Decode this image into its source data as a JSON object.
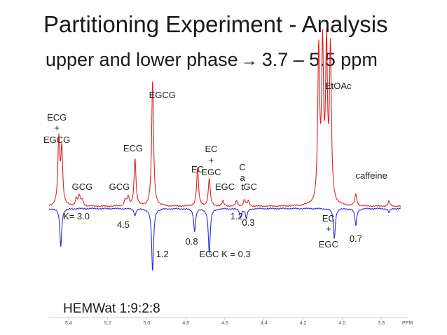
{
  "slide": {
    "title": "Partitioning Experiment - Analysis",
    "subtitle_prefix": "upper and lower phase",
    "subtitle_arrow": "→",
    "subtitle_range": "3.7 – 5.5 ppm",
    "footer": "HEMWat 1:9:2:8"
  },
  "chart_data": {
    "type": "line",
    "title": "",
    "xlabel": "PPM",
    "ylabel": "",
    "x_reversed": true,
    "xlim": [
      5.5,
      3.7
    ],
    "x_ticks": [
      "5.4",
      "5.2",
      "5.0",
      "4.8",
      "4.6",
      "4.4",
      "4.2",
      "4.0",
      "3.8"
    ],
    "x_tick_values": [
      5.4,
      5.2,
      5.0,
      4.8,
      4.6,
      4.4,
      4.2,
      4.0,
      3.8
    ],
    "grid": false,
    "legend": "none",
    "series": [
      {
        "name": "",
        "color": "#e02020",
        "direction": "up",
        "peaks": [
          {
            "ppm": 5.45,
            "height": 0.52
          },
          {
            "ppm": 5.435,
            "height": 0.44
          },
          {
            "ppm": 5.36,
            "height": 0.06
          },
          {
            "ppm": 5.345,
            "height": 0.08
          },
          {
            "ppm": 5.33,
            "height": 0.05
          },
          {
            "ppm": 5.11,
            "height": 0.05
          },
          {
            "ppm": 5.095,
            "height": 0.07
          },
          {
            "ppm": 5.06,
            "height": 0.38
          },
          {
            "ppm": 4.97,
            "height": 1.0
          },
          {
            "ppm": 4.74,
            "height": 0.3
          },
          {
            "ppm": 4.68,
            "height": 0.22
          },
          {
            "ppm": 4.61,
            "height": 0.04
          },
          {
            "ppm": 4.54,
            "height": 0.04
          },
          {
            "ppm": 4.5,
            "height": 0.05
          },
          {
            "ppm": 4.48,
            "height": 0.04
          },
          {
            "ppm": 4.12,
            "height": 1.2
          },
          {
            "ppm": 4.1,
            "height": 1.2
          },
          {
            "ppm": 4.08,
            "height": 1.2
          },
          {
            "ppm": 4.06,
            "height": 1.2
          },
          {
            "ppm": 3.93,
            "height": 0.09
          },
          {
            "ppm": 3.76,
            "height": 0.04
          }
        ]
      },
      {
        "name": "",
        "color": "#2a2ae0",
        "direction": "down",
        "peaks": [
          {
            "ppm": 5.44,
            "height": 0.45
          },
          {
            "ppm": 5.06,
            "height": 0.08
          },
          {
            "ppm": 4.97,
            "height": 0.75
          },
          {
            "ppm": 4.755,
            "height": 0.27
          },
          {
            "ppm": 4.68,
            "height": 0.54
          },
          {
            "ppm": 4.52,
            "height": 0.1
          },
          {
            "ppm": 4.49,
            "height": 0.12
          },
          {
            "ppm": 4.04,
            "height": 0.36
          },
          {
            "ppm": 3.93,
            "height": 0.2
          },
          {
            "ppm": 3.76,
            "height": 0.05
          }
        ]
      }
    ],
    "annotations": [
      {
        "text": "ECG",
        "ppm": 5.46,
        "row": 0
      },
      {
        "text": "+",
        "ppm": 5.46,
        "row": 1
      },
      {
        "text": "EGCG",
        "ppm": 5.46,
        "row": 2
      },
      {
        "text": "GCG",
        "ppm": 5.33,
        "row": 3
      },
      {
        "text": "GCG",
        "ppm": 5.14,
        "row": 3
      },
      {
        "text": "ECG",
        "ppm": 5.07,
        "row": 4
      },
      {
        "text": "EGCG",
        "ppm": 4.92,
        "row": 5
      },
      {
        "text": "EC",
        "ppm": 4.74,
        "row": 6
      },
      {
        "text": "EC",
        "ppm": 4.67,
        "row": 7
      },
      {
        "text": "+",
        "ppm": 4.67,
        "row": 8
      },
      {
        "text": "EGC",
        "ppm": 4.67,
        "row": 9
      },
      {
        "text": "EGC",
        "ppm": 4.6,
        "row": 3
      },
      {
        "text": "C",
        "ppm": 4.51,
        "row": 10
      },
      {
        "text": "a",
        "ppm": 4.51,
        "row": 11
      },
      {
        "text": "t",
        "ppm": 4.51,
        "row": 3
      },
      {
        "text": "GC",
        "ppm": 4.47,
        "row": 3
      },
      {
        "text": "EtOAc",
        "ppm": 4.02,
        "row": 12
      },
      {
        "text": "caffeine",
        "ppm": 3.85,
        "row": 13
      },
      {
        "text": "K= 3.0",
        "ppm": 5.36,
        "row": 14
      },
      {
        "text": "4.5",
        "ppm": 5.12,
        "row": 15
      },
      {
        "text": "1.2",
        "ppm": 4.92,
        "row": 16
      },
      {
        "text": "0.8",
        "ppm": 4.77,
        "row": 17
      },
      {
        "text": "1.2",
        "ppm": 4.54,
        "row": 14
      },
      {
        "text": "0.3",
        "ppm": 4.48,
        "row": 18
      },
      {
        "text": "EGC K = 0.3",
        "ppm": 4.6,
        "row": 16
      },
      {
        "text": "EC",
        "ppm": 4.07,
        "row": 19
      },
      {
        "text": "+",
        "ppm": 4.07,
        "row": 20
      },
      {
        "text": "EGC",
        "ppm": 4.07,
        "row": 21
      },
      {
        "text": "0.7",
        "ppm": 3.93,
        "row": 22
      }
    ]
  }
}
